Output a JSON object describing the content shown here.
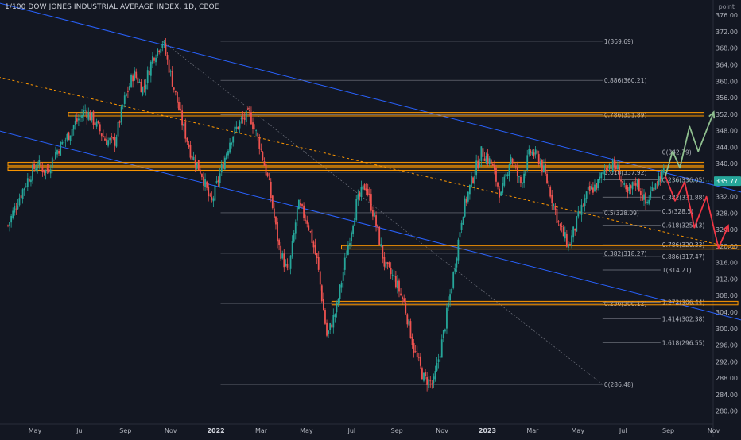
{
  "header": {
    "title": "1/100 DOW JONES INDUSTRIAL AVERAGE INDEX, 1D, CBOE",
    "unit": "point"
  },
  "colors": {
    "background": "#131722",
    "up": "#26a69a",
    "down": "#ef5350",
    "channel": "#2962ff",
    "zone": "#ff9800",
    "fib": "#787b86",
    "text": "#b2b5be",
    "arrow_up": "#8fbf8f",
    "arrow_down": "#f23645",
    "price_badge": "#26a69a"
  },
  "chart_data": {
    "type": "candlestick",
    "title": "1/100 DOW JONES INDUSTRIAL AVERAGE INDEX, 1D, CBOE",
    "ylim": [
      278,
      377
    ],
    "y_ticks": [
      280,
      284,
      288,
      292,
      296,
      300,
      304,
      308,
      312,
      316,
      320,
      324,
      328,
      332,
      336,
      340,
      344,
      348,
      352,
      356,
      360,
      364,
      368,
      372,
      376
    ],
    "x_ticks": [
      "May",
      "Jul",
      "Sep",
      "Nov",
      "2022",
      "Mar",
      "May",
      "Jul",
      "Sep",
      "Nov",
      "2023",
      "Mar",
      "May",
      "Jul",
      "Sep",
      "Nov"
    ],
    "x_tick_bold": [
      "2022",
      "2023"
    ],
    "last_price": "335.77",
    "price_path": [
      [
        0,
        325
      ],
      [
        2,
        331
      ],
      [
        4,
        336
      ],
      [
        6,
        340
      ],
      [
        8,
        338
      ],
      [
        10,
        343
      ],
      [
        12,
        346
      ],
      [
        14,
        350
      ],
      [
        16,
        353
      ],
      [
        18,
        350
      ],
      [
        20,
        346
      ],
      [
        22,
        345
      ],
      [
        24,
        355
      ],
      [
        26,
        362
      ],
      [
        28,
        358
      ],
      [
        30,
        366
      ],
      [
        32,
        369.7
      ],
      [
        34,
        360
      ],
      [
        36,
        350
      ],
      [
        38,
        342
      ],
      [
        40,
        338
      ],
      [
        42,
        330
      ],
      [
        44,
        338
      ],
      [
        46,
        346
      ],
      [
        48,
        350
      ],
      [
        50,
        352
      ],
      [
        52,
        345
      ],
      [
        54,
        335
      ],
      [
        56,
        320
      ],
      [
        58,
        313
      ],
      [
        60,
        330
      ],
      [
        62,
        326
      ],
      [
        64,
        316
      ],
      [
        66,
        298
      ],
      [
        68,
        305
      ],
      [
        70,
        318
      ],
      [
        72,
        330
      ],
      [
        74,
        335
      ],
      [
        76,
        326
      ],
      [
        78,
        315
      ],
      [
        80,
        312
      ],
      [
        82,
        306
      ],
      [
        84,
        295
      ],
      [
        86,
        288
      ],
      [
        88,
        286.5
      ],
      [
        90,
        298
      ],
      [
        92,
        312
      ],
      [
        94,
        328
      ],
      [
        96,
        336
      ],
      [
        98,
        343
      ],
      [
        100,
        340
      ],
      [
        102,
        332
      ],
      [
        104,
        342
      ],
      [
        106,
        335
      ],
      [
        108,
        343
      ],
      [
        110,
        341
      ],
      [
        112,
        334
      ],
      [
        114,
        325
      ],
      [
        116,
        320
      ],
      [
        118,
        327
      ],
      [
        120,
        333
      ],
      [
        122,
        335
      ],
      [
        124,
        340
      ],
      [
        126,
        339
      ],
      [
        128,
        332
      ],
      [
        130,
        336
      ],
      [
        132,
        330
      ],
      [
        134,
        336
      ],
      [
        136,
        338
      ]
    ],
    "channel_upper": [
      [
        -2,
        379
      ],
      [
        152,
        333
      ]
    ],
    "channel_lower": [
      [
        -2,
        348
      ],
      [
        152,
        302
      ]
    ],
    "dotted_trend": [
      [
        -2,
        361
      ],
      [
        152,
        319
      ]
    ],
    "zones": [
      {
        "from": 12.5,
        "to": 144,
        "y": 352.0
      },
      {
        "from": 0,
        "to": 144,
        "y": 339.9
      },
      {
        "from": 0,
        "to": 144,
        "y": 338.8
      },
      {
        "from": 69,
        "to": 158,
        "y": 319.7
      },
      {
        "from": 67,
        "to": 151,
        "y": 306.2
      }
    ],
    "fib_grid_1": {
      "from": 44,
      "to": 123,
      "levels": [
        {
          "label": "1(369.69)",
          "value": 369.69
        },
        {
          "label": "0.886(360.21)",
          "value": 360.21
        },
        {
          "label": "0.786(351.89)",
          "value": 351.89
        },
        {
          "label": "0.618(337.92)",
          "value": 337.92
        },
        {
          "label": "0.5(328.09)",
          "value": 328.09
        },
        {
          "label": "0.382(318.27)",
          "value": 318.27
        },
        {
          "label": "0.236(306.12)",
          "value": 306.12
        },
        {
          "label": "0(286.48)",
          "value": 286.48
        }
      ]
    },
    "fib_grid_2": {
      "from": 123,
      "to": 135,
      "levels": [
        {
          "label": "0(342.79)",
          "value": 342.79
        },
        {
          "label": "0.236(336.05)",
          "value": 336.05
        },
        {
          "label": "0.382(331.88)",
          "value": 331.88
        },
        {
          "label": "0.5(328.5)",
          "value": 328.5
        },
        {
          "label": "0.618(325.13)",
          "value": 325.13
        },
        {
          "label": "0.786(320.33)",
          "value": 320.33
        },
        {
          "label": "0.886(317.47)",
          "value": 317.47
        },
        {
          "label": "1(314.21)",
          "value": 314.21
        },
        {
          "label": "1.272(306.44)",
          "value": 306.44
        },
        {
          "label": "1.414(302.38)",
          "value": 302.38
        },
        {
          "label": "1.618(296.55)",
          "value": 296.55
        }
      ]
    },
    "projection_up": [
      [
        136,
        337
      ],
      [
        137.5,
        343
      ],
      [
        139,
        339
      ],
      [
        141,
        349
      ],
      [
        142.8,
        343
      ],
      [
        146,
        352.5
      ]
    ],
    "projection_down": [
      [
        136,
        337
      ],
      [
        138,
        331
      ],
      [
        140,
        335.5
      ],
      [
        142,
        324.5
      ],
      [
        144.5,
        332
      ],
      [
        147,
        319.5
      ],
      [
        149,
        325
      ]
    ]
  }
}
